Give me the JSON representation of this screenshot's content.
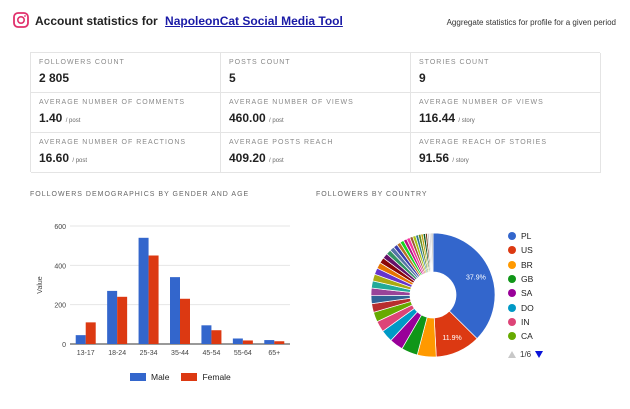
{
  "header": {
    "title_prefix": "Account statistics for",
    "profile_link": "NapoleonCat Social Media Tool",
    "subtitle": "Aggregate statistics for profile for a given period",
    "icon": "instagram-icon",
    "icon_color": "#e1306c"
  },
  "stats": [
    {
      "label": "FOLLOWERS COUNT",
      "value": "2 805",
      "unit": ""
    },
    {
      "label": "POSTS COUNT",
      "value": "5",
      "unit": ""
    },
    {
      "label": "STORIES COUNT",
      "value": "9",
      "unit": ""
    },
    {
      "label": "AVERAGE NUMBER OF COMMENTS",
      "value": "1.40",
      "unit": "/ post"
    },
    {
      "label": "AVERAGE NUMBER OF VIEWS",
      "value": "460.00",
      "unit": "/ post"
    },
    {
      "label": "AVERAGE NUMBER OF VIEWS",
      "value": "116.44",
      "unit": "/ story"
    },
    {
      "label": "AVERAGE NUMBER OF REACTIONS",
      "value": "16.60",
      "unit": "/ post"
    },
    {
      "label": "AVERAGE POSTS REACH",
      "value": "409.20",
      "unit": "/ post"
    },
    {
      "label": "AVERAGE REACH OF STORIES",
      "value": "91.56",
      "unit": "/ story"
    }
  ],
  "sections": {
    "demographics_title": "FOLLOWERS DEMOGRAPHICS BY GENDER AND AGE",
    "country_title": "FOLLOWERS BY COUNTRY"
  },
  "chart_data": [
    {
      "type": "bar",
      "categories": [
        "13-17",
        "18-24",
        "25-34",
        "35-44",
        "45-54",
        "55-64",
        "65+"
      ],
      "series": [
        {
          "name": "Male",
          "color": "#3366cc",
          "values": [
            45,
            270,
            540,
            340,
            95,
            28,
            20
          ]
        },
        {
          "name": "Female",
          "color": "#dc3912",
          "values": [
            110,
            240,
            450,
            230,
            70,
            18,
            14
          ]
        }
      ],
      "ylabel": "Value",
      "ylim": [
        0,
        600
      ],
      "yticks": [
        0,
        200,
        400,
        600
      ],
      "grid": true,
      "legend": "bottom"
    },
    {
      "type": "pie",
      "donut": true,
      "slices": [
        {
          "label": "PL",
          "value": 37.9,
          "color": "#3366cc",
          "data_label": "37.9%"
        },
        {
          "label": "US",
          "value": 11.9,
          "color": "#dc3912",
          "data_label": "11.9%"
        },
        {
          "label": "BR",
          "value": 5.0,
          "color": "#ff9900",
          "data_label": ""
        },
        {
          "label": "GB",
          "value": 4.3,
          "color": "#109618",
          "data_label": ""
        },
        {
          "label": "SA",
          "value": 3.6,
          "color": "#990099",
          "data_label": ""
        },
        {
          "label": "DO",
          "value": 3.2,
          "color": "#0099c6",
          "data_label": ""
        },
        {
          "label": "IN",
          "value": 2.9,
          "color": "#dd4477",
          "data_label": ""
        },
        {
          "label": "CA",
          "value": 2.6,
          "color": "#66aa00",
          "data_label": ""
        },
        {
          "label": "",
          "value": 2.3,
          "color": "#b82e2e",
          "data_label": ""
        },
        {
          "label": "",
          "value": 2.1,
          "color": "#316395",
          "data_label": ""
        },
        {
          "label": "",
          "value": 2.0,
          "color": "#994499",
          "data_label": ""
        },
        {
          "label": "",
          "value": 1.9,
          "color": "#22aa99",
          "data_label": ""
        },
        {
          "label": "",
          "value": 1.8,
          "color": "#aaaa11",
          "data_label": ""
        },
        {
          "label": "",
          "value": 1.7,
          "color": "#6633cc",
          "data_label": ""
        },
        {
          "label": "",
          "value": 1.6,
          "color": "#e67300",
          "data_label": ""
        },
        {
          "label": "",
          "value": 1.5,
          "color": "#8b0707",
          "data_label": ""
        },
        {
          "label": "",
          "value": 1.4,
          "color": "#651067",
          "data_label": ""
        },
        {
          "label": "",
          "value": 1.3,
          "color": "#329262",
          "data_label": ""
        },
        {
          "label": "",
          "value": 1.2,
          "color": "#5574a6",
          "data_label": ""
        },
        {
          "label": "",
          "value": 1.1,
          "color": "#3b3eac",
          "data_label": ""
        },
        {
          "label": "",
          "value": 1.0,
          "color": "#b77322",
          "data_label": ""
        },
        {
          "label": "",
          "value": 1.0,
          "color": "#16d620",
          "data_label": ""
        },
        {
          "label": "",
          "value": 0.9,
          "color": "#b91383",
          "data_label": ""
        },
        {
          "label": "",
          "value": 0.9,
          "color": "#f4359e",
          "data_label": ""
        },
        {
          "label": "",
          "value": 0.8,
          "color": "#9c5935",
          "data_label": ""
        },
        {
          "label": "",
          "value": 0.8,
          "color": "#a9c413",
          "data_label": ""
        },
        {
          "label": "",
          "value": 0.7,
          "color": "#2a778d",
          "data_label": ""
        },
        {
          "label": "",
          "value": 0.7,
          "color": "#668d1c",
          "data_label": ""
        },
        {
          "label": "",
          "value": 0.6,
          "color": "#bea413",
          "data_label": ""
        },
        {
          "label": "",
          "value": 0.6,
          "color": "#0c5922",
          "data_label": ""
        },
        {
          "label": "",
          "value": 0.5,
          "color": "#743411",
          "data_label": ""
        },
        {
          "label": "",
          "value": 0.5,
          "color": "#cccccc",
          "data_label": ""
        },
        {
          "label": "",
          "value": 0.5,
          "color": "#dddddd",
          "data_label": ""
        },
        {
          "label": "",
          "value": 0.5,
          "color": "#bbbbbb",
          "data_label": ""
        }
      ],
      "legend": "right",
      "pager": "1/6"
    }
  ]
}
